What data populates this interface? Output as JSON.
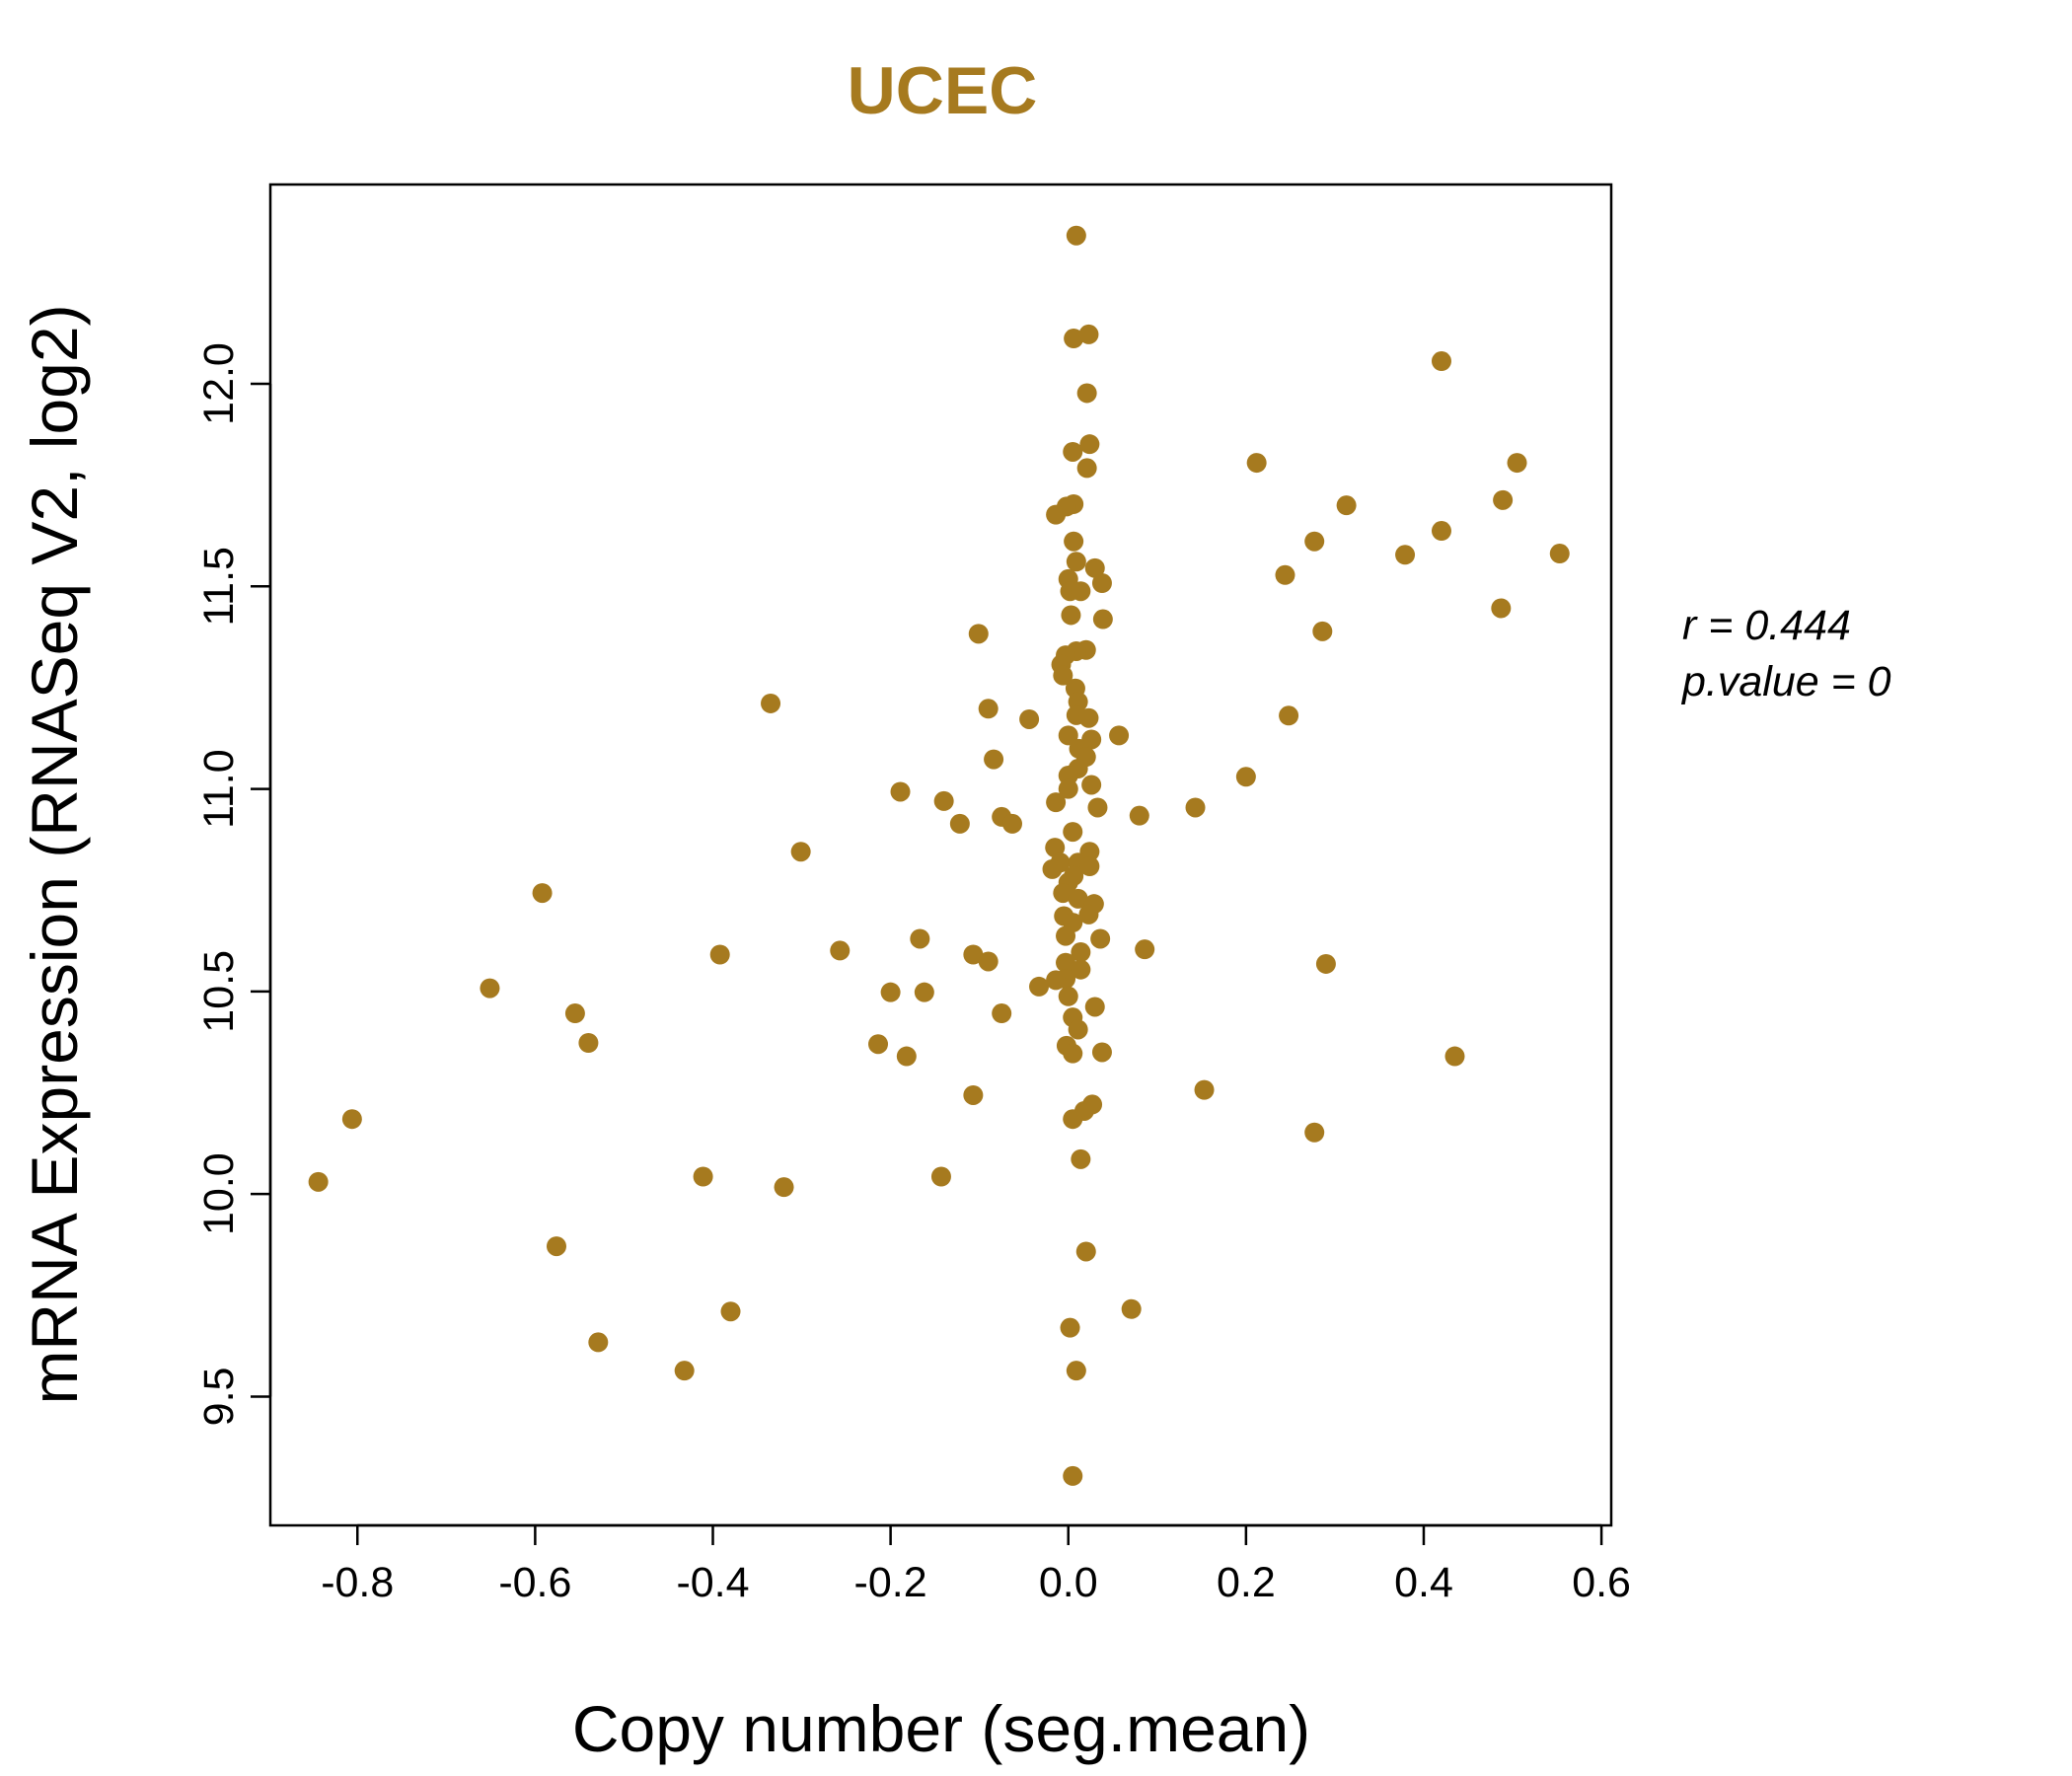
{
  "chart_data": {
    "type": "scatter",
    "title": "UCEC",
    "xlabel": "Copy number (seg.mean)",
    "ylabel": "mRNA Expression (RNASeq V2, log2)",
    "xlim": [
      -0.898,
      0.611
    ],
    "ylim": [
      9.182,
      12.492
    ],
    "xticks": [
      -0.8,
      -0.6,
      -0.4,
      -0.2,
      0.0,
      0.2,
      0.4,
      0.6
    ],
    "xtick_labels": [
      "-0.8",
      "-0.6",
      "-0.4",
      "-0.2",
      "0.0",
      "0.2",
      "0.4",
      "0.6"
    ],
    "yticks": [
      9.5,
      10.0,
      10.5,
      11.0,
      11.5,
      12.0
    ],
    "ytick_labels": [
      "9.5",
      "10.0",
      "10.5",
      "11.0",
      "11.5",
      "12.0"
    ],
    "grid": false,
    "color": "#A67A1F",
    "annotations": {
      "r": "r = 0.444",
      "p": "p.value = 0"
    },
    "points": [
      [
        0.009,
        12.366
      ],
      [
        0.006,
        12.112
      ],
      [
        0.023,
        12.122
      ],
      [
        0.42,
        12.056
      ],
      [
        0.021,
        11.977
      ],
      [
        0.024,
        11.851
      ],
      [
        0.005,
        11.832
      ],
      [
        0.212,
        11.805
      ],
      [
        0.505,
        11.805
      ],
      [
        0.021,
        11.792
      ],
      [
        0.313,
        11.7
      ],
      [
        0.489,
        11.713
      ],
      [
        0.006,
        11.703
      ],
      [
        -0.002,
        11.697
      ],
      [
        -0.014,
        11.677
      ],
      [
        0.42,
        11.637
      ],
      [
        0.277,
        11.611
      ],
      [
        0.006,
        11.611
      ],
      [
        0.379,
        11.578
      ],
      [
        0.553,
        11.581
      ],
      [
        0.009,
        11.561
      ],
      [
        0.03,
        11.545
      ],
      [
        0.244,
        11.528
      ],
      [
        0.0,
        11.518
      ],
      [
        0.038,
        11.508
      ],
      [
        0.002,
        11.488
      ],
      [
        0.014,
        11.488
      ],
      [
        0.487,
        11.446
      ],
      [
        0.003,
        11.429
      ],
      [
        0.039,
        11.419
      ],
      [
        -0.101,
        11.383
      ],
      [
        0.286,
        11.389
      ],
      [
        0.02,
        11.343
      ],
      [
        0.009,
        11.34
      ],
      [
        -0.003,
        11.33
      ],
      [
        -0.008,
        11.307
      ],
      [
        -0.006,
        11.28
      ],
      [
        -0.335,
        11.211
      ],
      [
        -0.09,
        11.198
      ],
      [
        0.008,
        11.248
      ],
      [
        0.011,
        11.215
      ],
      [
        0.009,
        11.182
      ],
      [
        -0.044,
        11.172
      ],
      [
        0.023,
        11.175
      ],
      [
        0.248,
        11.181
      ],
      [
        0.057,
        11.132
      ],
      [
        0.0,
        11.132
      ],
      [
        0.026,
        11.122
      ],
      [
        0.012,
        11.099
      ],
      [
        0.02,
        11.079
      ],
      [
        -0.084,
        11.073
      ],
      [
        0.011,
        11.05
      ],
      [
        0.0,
        11.033
      ],
      [
        0.2,
        11.03
      ],
      [
        0.026,
        11.01
      ],
      [
        0.0,
        11.0
      ],
      [
        -0.189,
        10.993
      ],
      [
        -0.014,
        10.967
      ],
      [
        -0.14,
        10.97
      ],
      [
        0.033,
        10.954
      ],
      [
        0.143,
        10.954
      ],
      [
        -0.075,
        10.931
      ],
      [
        -0.063,
        10.914
      ],
      [
        0.08,
        10.934
      ],
      [
        -0.122,
        10.914
      ],
      [
        0.005,
        10.894
      ],
      [
        -0.301,
        10.845
      ],
      [
        -0.015,
        10.855
      ],
      [
        0.024,
        10.845
      ],
      [
        -0.009,
        10.818
      ],
      [
        0.011,
        10.818
      ],
      [
        0.024,
        10.809
      ],
      [
        -0.018,
        10.802
      ],
      [
        0.006,
        10.785
      ],
      [
        0.0,
        10.769
      ],
      [
        -0.592,
        10.743
      ],
      [
        -0.006,
        10.743
      ],
      [
        0.011,
        10.729
      ],
      [
        0.029,
        10.716
      ],
      [
        0.023,
        10.69
      ],
      [
        -0.005,
        10.686
      ],
      [
        0.005,
        10.67
      ],
      [
        -0.167,
        10.63
      ],
      [
        0.036,
        10.63
      ],
      [
        -0.003,
        10.637
      ],
      [
        -0.257,
        10.601
      ],
      [
        -0.392,
        10.591
      ],
      [
        0.086,
        10.604
      ],
      [
        -0.107,
        10.591
      ],
      [
        -0.09,
        10.574
      ],
      [
        0.014,
        10.597
      ],
      [
        0.29,
        10.568
      ],
      [
        -0.003,
        10.571
      ],
      [
        0.014,
        10.554
      ],
      [
        -0.003,
        10.531
      ],
      [
        -0.014,
        10.528
      ],
      [
        -0.651,
        10.508
      ],
      [
        -0.033,
        10.512
      ],
      [
        -0.2,
        10.498
      ],
      [
        -0.162,
        10.498
      ],
      [
        0.0,
        10.488
      ],
      [
        0.03,
        10.462
      ],
      [
        -0.555,
        10.446
      ],
      [
        -0.075,
        10.446
      ],
      [
        0.005,
        10.436
      ],
      [
        0.011,
        10.406
      ],
      [
        -0.54,
        10.373
      ],
      [
        -0.214,
        10.37
      ],
      [
        -0.002,
        10.366
      ],
      [
        -0.182,
        10.34
      ],
      [
        0.005,
        10.347
      ],
      [
        0.038,
        10.35
      ],
      [
        0.435,
        10.34
      ],
      [
        0.153,
        10.257
      ],
      [
        -0.107,
        10.244
      ],
      [
        0.027,
        10.221
      ],
      [
        0.018,
        10.205
      ],
      [
        0.005,
        10.185
      ],
      [
        -0.806,
        10.185
      ],
      [
        0.277,
        10.152
      ],
      [
        0.014,
        10.086
      ],
      [
        -0.844,
        10.03
      ],
      [
        -0.411,
        10.043
      ],
      [
        -0.143,
        10.043
      ],
      [
        -0.32,
        10.017
      ],
      [
        -0.576,
        9.871
      ],
      [
        0.02,
        9.858
      ],
      [
        -0.38,
        9.71
      ],
      [
        0.071,
        9.716
      ],
      [
        0.002,
        9.67
      ],
      [
        -0.529,
        9.634
      ],
      [
        -0.432,
        9.564
      ],
      [
        0.009,
        9.564
      ],
      [
        0.005,
        9.304
      ]
    ]
  }
}
